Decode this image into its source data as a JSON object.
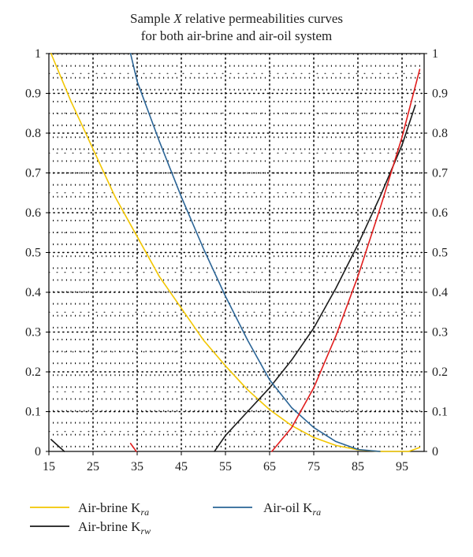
{
  "chart_data": {
    "type": "line",
    "title_line1_prefix": "Sample ",
    "title_line1_var": "X",
    "title_line1_suffix": " relative permeabilities curves",
    "title_line2": "for both air-brine and air-oil system",
    "xlim": [
      15,
      100
    ],
    "ylim": [
      0,
      1
    ],
    "x_ticks": [
      "15",
      "25",
      "35",
      "45",
      "55",
      "65",
      "75",
      "85",
      "95"
    ],
    "y_ticks_left": [
      "0",
      "0.1",
      "0.2",
      "0.3",
      "0.4",
      "0.5",
      "0.6",
      "0.7",
      "0.8",
      "0.9",
      "1"
    ],
    "y_ticks_right": [
      "0",
      "0.1",
      "0.2",
      "0.3",
      "0.4",
      "0.5",
      "0.6",
      "0.7",
      "0.8",
      "0.9",
      "1"
    ],
    "grid": "dotted",
    "legend_position": "bottom",
    "series": [
      {
        "name": "Air-brine K_ra",
        "legend_base": "Air-brine K",
        "legend_sub": "ra",
        "color": "#f2c600",
        "x": [
          15.5,
          20,
          25,
          30,
          35,
          40,
          45,
          50,
          55,
          60,
          65,
          70,
          75,
          80,
          85,
          90,
          95,
          96.5,
          99
        ],
        "y": [
          1.0,
          0.88,
          0.76,
          0.64,
          0.54,
          0.44,
          0.36,
          0.28,
          0.215,
          0.155,
          0.105,
          0.065,
          0.035,
          0.015,
          0.004,
          0.0,
          0.0,
          0.0,
          0.01
        ]
      },
      {
        "name": "Air-brine K_rw",
        "legend_base": "Air-brine K",
        "legend_sub": "rw",
        "color": "#1a1a1a",
        "x": [
          52.5,
          55,
          60,
          65,
          70,
          75,
          78,
          80,
          85,
          90,
          95,
          98
        ],
        "y": [
          0.0,
          0.04,
          0.1,
          0.16,
          0.23,
          0.31,
          0.37,
          0.41,
          0.52,
          0.64,
          0.77,
          0.87
        ]
      },
      {
        "name": "Air-oil K_ra",
        "legend_base": "Air-oil K",
        "legend_sub": "ra",
        "color": "#2a6496",
        "x": [
          33.5,
          35,
          40,
          45,
          50,
          55,
          60,
          65,
          70,
          75,
          80,
          85,
          90
        ],
        "y": [
          1.0,
          0.93,
          0.78,
          0.64,
          0.51,
          0.39,
          0.28,
          0.18,
          0.11,
          0.06,
          0.025,
          0.005,
          0.0
        ]
      },
      {
        "name": "",
        "color": "#e11d1d",
        "x": [
          65.5,
          70,
          75,
          80,
          85,
          90,
          95,
          99
        ],
        "y": [
          0.0,
          0.06,
          0.16,
          0.29,
          0.44,
          0.61,
          0.79,
          0.96
        ]
      }
    ],
    "stray_segments": [
      {
        "color": "#1a1a1a",
        "x": [
          15.5,
          18.5
        ],
        "y": [
          0.03,
          0.0
        ]
      },
      {
        "color": "#e11d1d",
        "x": [
          33.5,
          34.8
        ],
        "y": [
          0.02,
          0.0
        ]
      }
    ]
  }
}
